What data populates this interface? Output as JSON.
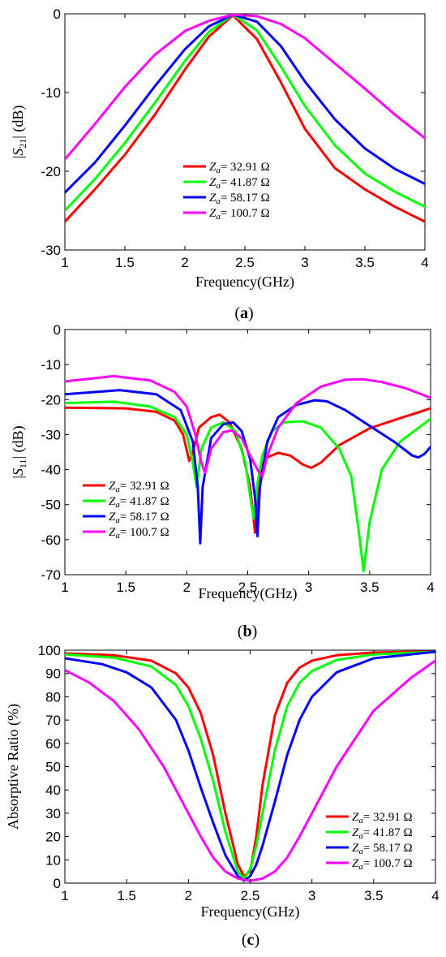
{
  "chart_data": [
    {
      "type": "line",
      "panel_label": "a",
      "xlabel": "Frequency(GHz)",
      "ylabel": "|S21| (dB)",
      "xlim": [
        1,
        4
      ],
      "ylim": [
        -30,
        0
      ],
      "xticks": [
        1,
        1.5,
        2,
        2.5,
        3,
        3.5,
        4
      ],
      "yticks": [
        -30,
        -20,
        -10,
        0
      ],
      "xtick_labels": [
        "1",
        "1.5",
        "2",
        "2.5",
        "3",
        "3.5",
        "4"
      ],
      "ytick_labels": [
        "-30",
        "-20",
        "-10",
        "0"
      ],
      "legend_position": "lower-center",
      "series": [
        {
          "name": "Za= 32.91 Ω",
          "color": "#ff0000",
          "x": [
            1,
            1.25,
            1.5,
            1.75,
            2,
            2.2,
            2.4,
            2.6,
            2.8,
            3,
            3.25,
            3.5,
            3.75,
            4
          ],
          "y": [
            -26.4,
            -22.3,
            -17.9,
            -12.8,
            -7.1,
            -2.9,
            -0.2,
            -3.2,
            -8.7,
            -14.6,
            -19.6,
            -22.3,
            -24.5,
            -26.4
          ]
        },
        {
          "name": "Za= 41.87 Ω",
          "color": "#00ff00",
          "x": [
            1,
            1.25,
            1.5,
            1.75,
            2,
            2.2,
            2.4,
            2.6,
            2.8,
            3,
            3.25,
            3.5,
            3.75,
            4
          ],
          "y": [
            -25,
            -21,
            -16.4,
            -11.3,
            -6,
            -2.3,
            -0.1,
            -2.1,
            -6.7,
            -11.7,
            -16.7,
            -20.3,
            -22.6,
            -24.5
          ]
        },
        {
          "name": "Za= 58.17 Ω",
          "color": "#0000ff",
          "x": [
            1,
            1.25,
            1.5,
            1.75,
            2,
            2.2,
            2.4,
            2.6,
            2.8,
            3,
            3.25,
            3.5,
            3.75,
            4
          ],
          "y": [
            -22.7,
            -18.9,
            -14.2,
            -9.2,
            -4.5,
            -1.6,
            -0.1,
            -1,
            -4.1,
            -8.6,
            -13.4,
            -17.1,
            -19.7,
            -21.6
          ]
        },
        {
          "name": "Za= 100.7 Ω",
          "color": "#ff00ff",
          "x": [
            1,
            1.25,
            1.5,
            1.75,
            2,
            2.2,
            2.4,
            2.6,
            2.8,
            3,
            3.25,
            3.5,
            3.75,
            4
          ],
          "y": [
            -18.5,
            -14,
            -9.3,
            -5.2,
            -2.2,
            -0.9,
            -0.1,
            -0.3,
            -1.3,
            -3.1,
            -6.3,
            -9.5,
            -12.8,
            -15.8
          ]
        }
      ]
    },
    {
      "type": "line",
      "panel_label": "b",
      "xlabel": "Frequency(GHz)",
      "ylabel": "|S11| (dB)",
      "xlim": [
        1,
        4
      ],
      "ylim": [
        -70,
        0
      ],
      "xticks": [
        1,
        1.5,
        2,
        2.5,
        3,
        3.5,
        4
      ],
      "yticks": [
        -70,
        -60,
        -50,
        -40,
        -30,
        -20,
        -10,
        0
      ],
      "xtick_labels": [
        "1",
        "1.5",
        "2",
        "2.5",
        "3",
        "3.5",
        "4"
      ],
      "ytick_labels": [
        "-70",
        "-60",
        "-50",
        "-40",
        "-30",
        "-20",
        "-10",
        "0"
      ],
      "legend_position": "lower-left",
      "series": [
        {
          "name": "Za= 32.91 Ω",
          "color": "#ff0000",
          "x": [
            1,
            1.5,
            1.75,
            1.9,
            1.97,
            2.02,
            2.05,
            2.1,
            2.2,
            2.27,
            2.35,
            2.45,
            2.52,
            2.56,
            2.58,
            2.61,
            2.66,
            2.75,
            2.85,
            2.95,
            3.02,
            3.1,
            3.25,
            3.5,
            3.75,
            4
          ],
          "y": [
            -22.3,
            -22.5,
            -23.5,
            -26,
            -30,
            -37.5,
            -35,
            -28,
            -25,
            -24.3,
            -26.5,
            -34,
            -45,
            -58,
            -48,
            -39,
            -36.5,
            -35.2,
            -36,
            -38.5,
            -39.5,
            -38,
            -33,
            -28.2,
            -25.3,
            -22.5
          ]
        },
        {
          "name": "Za= 41.87 Ω",
          "color": "#00ff00",
          "x": [
            1,
            1.4,
            1.7,
            1.9,
            2,
            2.05,
            2.08,
            2.12,
            2.2,
            2.3,
            2.4,
            2.48,
            2.53,
            2.55,
            2.58,
            2.62,
            2.7,
            2.8,
            2.95,
            3.1,
            3.25,
            3.35,
            3.42,
            3.45,
            3.5,
            3.6,
            3.75,
            4
          ],
          "y": [
            -21,
            -20.6,
            -22,
            -25,
            -30,
            -38,
            -45,
            -34,
            -28,
            -26.5,
            -29,
            -38,
            -50,
            -54,
            -44,
            -36,
            -29,
            -26.5,
            -26.2,
            -28,
            -34,
            -42,
            -60,
            -69,
            -55,
            -40,
            -32,
            -25.5
          ]
        },
        {
          "name": "Za= 58.17 Ω",
          "color": "#0000ff",
          "x": [
            1,
            1.45,
            1.75,
            1.95,
            2.05,
            2.09,
            2.11,
            2.13,
            2.2,
            2.3,
            2.38,
            2.45,
            2.52,
            2.56,
            2.58,
            2.6,
            2.66,
            2.75,
            2.9,
            3.05,
            3.15,
            3.3,
            3.5,
            3.7,
            3.85,
            3.9,
            3.95,
            4
          ],
          "y": [
            -18.5,
            -17.3,
            -18.5,
            -23,
            -32,
            -45,
            -61,
            -45,
            -31,
            -27,
            -26.5,
            -29,
            -37,
            -48,
            -59,
            -45,
            -32,
            -25,
            -21.5,
            -20.2,
            -20.5,
            -23,
            -27.5,
            -32,
            -36,
            -36.5,
            -35.5,
            -33.5
          ]
        },
        {
          "name": "Za= 100.7 Ω",
          "color": "#ff00ff",
          "x": [
            1,
            1.4,
            1.7,
            1.9,
            2,
            2.07,
            2.12,
            2.15,
            2.2,
            2.3,
            2.37,
            2.45,
            2.52,
            2.58,
            2.62,
            2.66,
            2.75,
            2.9,
            3.1,
            3.3,
            3.45,
            3.6,
            3.8,
            4
          ],
          "y": [
            -14.8,
            -13.3,
            -14.5,
            -17.8,
            -22,
            -30,
            -38,
            -41,
            -34,
            -29.3,
            -28.8,
            -31,
            -36,
            -40,
            -42,
            -36,
            -28,
            -21,
            -16.3,
            -14.3,
            -14.2,
            -15,
            -16.8,
            -19.5
          ]
        }
      ]
    },
    {
      "type": "line",
      "panel_label": "c",
      "xlabel": "Frequency(GHz)",
      "ylabel": "Absorptive Ratio (%)",
      "xlim": [
        1,
        4
      ],
      "ylim": [
        0,
        100
      ],
      "xticks": [
        1,
        1.5,
        2,
        2.5,
        3,
        3.5,
        4
      ],
      "yticks": [
        0,
        10,
        20,
        30,
        40,
        50,
        60,
        70,
        80,
        90,
        100
      ],
      "xtick_labels": [
        "1",
        "1.5",
        "2",
        "2.5",
        "3",
        "3.5",
        "4"
      ],
      "ytick_labels": [
        "0",
        "10",
        "20",
        "30",
        "40",
        "50",
        "60",
        "70",
        "80",
        "90",
        "100"
      ],
      "legend_position": "lower-right",
      "series": [
        {
          "name": "Za= 32.91 Ω",
          "color": "#ff0000",
          "x": [
            1,
            1.4,
            1.7,
            1.9,
            2,
            2.1,
            2.2,
            2.3,
            2.4,
            2.45,
            2.5,
            2.55,
            2.6,
            2.7,
            2.8,
            2.9,
            3,
            3.2,
            3.5,
            4
          ],
          "y": [
            98.6,
            97.8,
            95.5,
            90,
            84,
            73,
            55,
            30,
            8,
            3,
            5,
            20,
            42,
            72,
            86,
            92.5,
            95.5,
            97.8,
            99,
            99.4
          ]
        },
        {
          "name": "Za= 41.87 Ω",
          "color": "#00ff00",
          "x": [
            1,
            1.4,
            1.7,
            1.9,
            2,
            2.1,
            2.2,
            2.3,
            2.4,
            2.45,
            2.5,
            2.55,
            2.6,
            2.7,
            2.8,
            2.9,
            3,
            3.2,
            3.5,
            4
          ],
          "y": [
            98.2,
            96.8,
            93,
            85,
            76,
            62,
            44,
            22,
            5,
            2,
            6,
            16,
            30,
            57,
            76,
            86,
            91,
            95.8,
            98.2,
            99.3
          ]
        },
        {
          "name": "Za= 58.17 Ω",
          "color": "#0000ff",
          "x": [
            1,
            1.3,
            1.5,
            1.7,
            1.9,
            2,
            2.1,
            2.2,
            2.3,
            2.4,
            2.45,
            2.5,
            2.55,
            2.6,
            2.7,
            2.8,
            2.9,
            3,
            3.2,
            3.5,
            4
          ],
          "y": [
            96.5,
            94,
            90.5,
            84,
            70,
            57,
            41,
            26,
            12,
            3,
            1,
            3,
            8,
            16,
            35,
            55,
            70,
            80,
            90.5,
            96.5,
            99.3
          ]
        },
        {
          "name": "Za= 100.7 Ω",
          "color": "#ff00ff",
          "x": [
            1,
            1.2,
            1.4,
            1.6,
            1.8,
            2,
            2.1,
            2.2,
            2.3,
            2.4,
            2.5,
            2.6,
            2.7,
            2.8,
            2.9,
            3,
            3.2,
            3.5,
            3.8,
            4
          ],
          "y": [
            91.5,
            86,
            78,
            66,
            50,
            30,
            20,
            11,
            5,
            2,
            1,
            2,
            5,
            11,
            20,
            30,
            50,
            74,
            88,
            95.5
          ]
        }
      ]
    }
  ]
}
